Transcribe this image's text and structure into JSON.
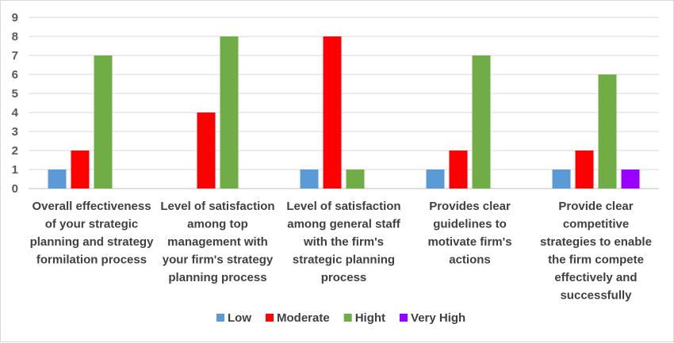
{
  "chart_data": {
    "type": "bar",
    "title": "",
    "xlabel": "",
    "ylabel": "",
    "ylim": [
      0,
      9
    ],
    "yticks": [
      0,
      1,
      2,
      3,
      4,
      5,
      6,
      7,
      8,
      9
    ],
    "grid": true,
    "legend_position": "bottom",
    "categories": [
      [
        "Overall effectiveness",
        "of your strategic",
        "planning and strategy",
        "formilation process"
      ],
      [
        "Level of satisfaction",
        "among top",
        "management with",
        "your firm's strategy",
        "planning process"
      ],
      [
        "Level of satisfaction",
        "among general staff",
        "with the firm's",
        "strategic planning",
        "process"
      ],
      [
        "Provides clear",
        "guidelines to",
        "motivate firm's",
        "actions"
      ],
      [
        "Provide clear",
        "competitive",
        "strategies to enable",
        "the firm compete",
        "effectively and",
        "successfully"
      ]
    ],
    "series": [
      {
        "name": "Low",
        "color": "#5b9bd5",
        "values": [
          1,
          0,
          1,
          1,
          1
        ]
      },
      {
        "name": "Moderate",
        "color": "#ff0000",
        "values": [
          2,
          4,
          8,
          2,
          2
        ]
      },
      {
        "name": "Hight",
        "color": "#70ad47",
        "values": [
          7,
          8,
          1,
          7,
          6
        ]
      },
      {
        "name": "Very High",
        "color": "#9900ff",
        "values": [
          0,
          0,
          0,
          0,
          1
        ]
      }
    ]
  }
}
